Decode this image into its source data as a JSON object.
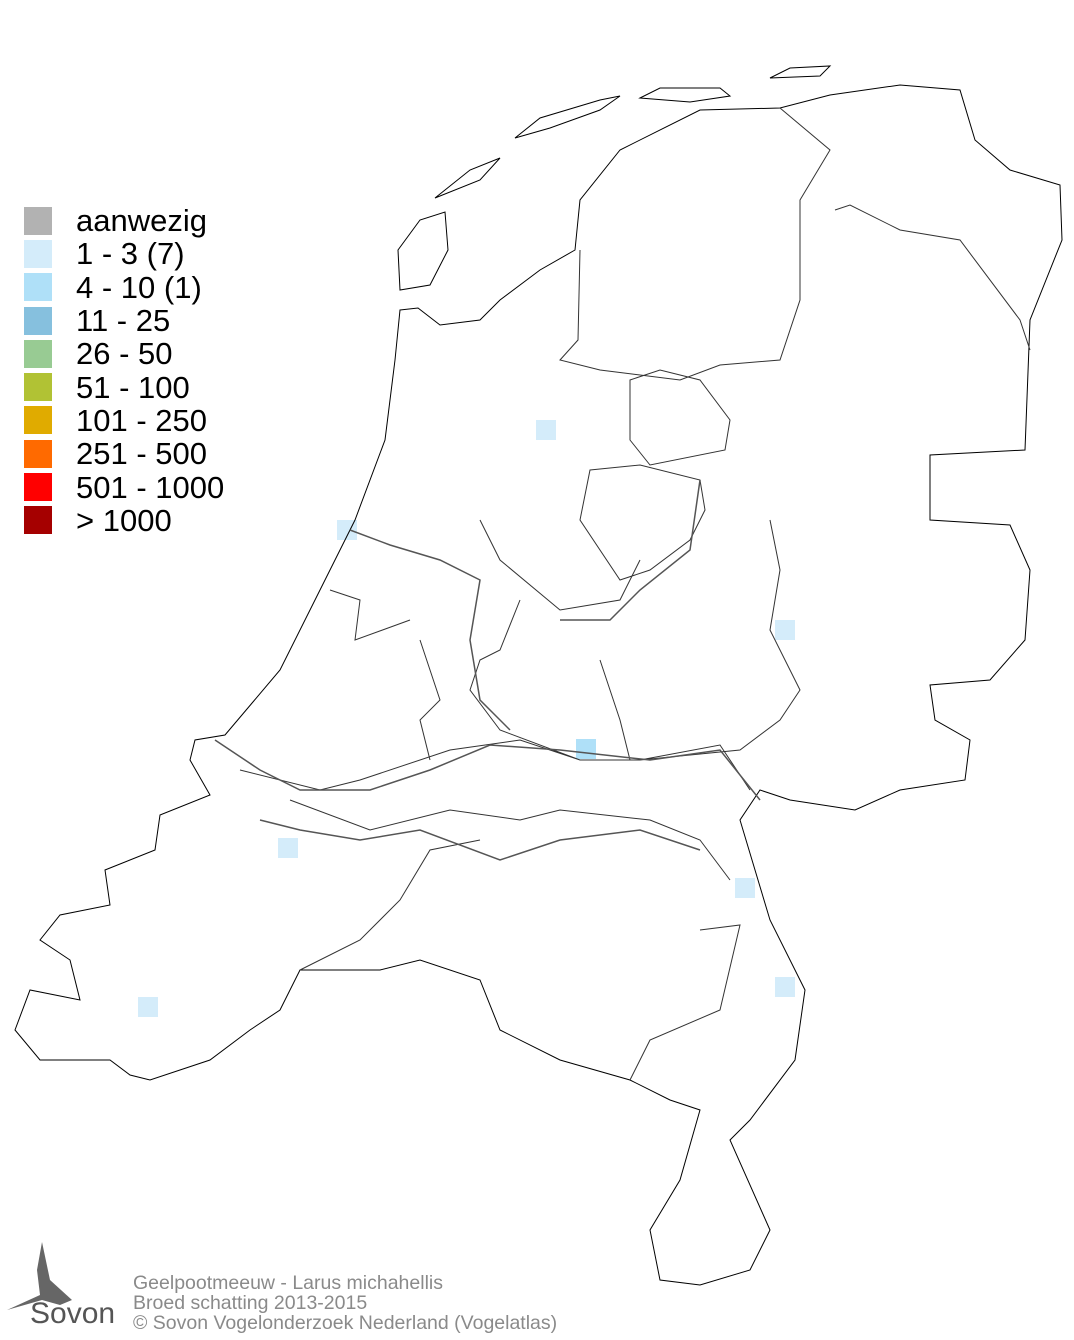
{
  "legend": {
    "items": [
      {
        "label": "aanwezig",
        "color": "#b2b2b2"
      },
      {
        "label": "1 - 3 (7)",
        "color": "#d4ecfa"
      },
      {
        "label": "4 - 10 (1)",
        "color": "#afe0f8"
      },
      {
        "label": "11 - 25",
        "color": "#86c0de"
      },
      {
        "label": "26 - 50",
        "color": "#98cb93"
      },
      {
        "label": "51 - 100",
        "color": "#b1c234"
      },
      {
        "label": "101 - 250",
        "color": "#e0ab00"
      },
      {
        "label": "251 - 500",
        "color": "#ff6a00"
      },
      {
        "label": "501 - 1000",
        "color": "#ff0000"
      },
      {
        "label": "> 1000",
        "color": "#a50000"
      }
    ]
  },
  "map": {
    "occupied_cells_by_class": {
      "1 - 3": 7,
      "4 - 10": 1
    }
  },
  "footer": {
    "species": "Geelpootmeeuw - Larus michahellis",
    "subtitle": "Broed schatting 2013-2015",
    "copyright": "© Sovon Vogelonderzoek Nederland (Vogelatlas)"
  },
  "logo": {
    "text": "Sovon"
  }
}
